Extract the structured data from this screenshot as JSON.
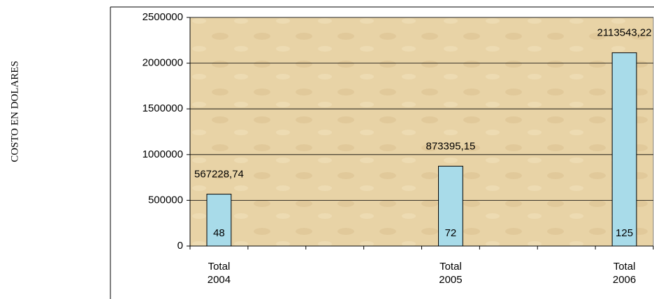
{
  "chart_data": {
    "type": "bar",
    "ylabel": "COSTO EN DOLARES",
    "categories": [
      "Total 2004",
      null,
      null,
      null,
      "Total 2005",
      null,
      null,
      "Total 2006"
    ],
    "values": [
      567228.74,
      null,
      null,
      null,
      873395.15,
      null,
      null,
      2113543.22
    ],
    "value_labels": [
      "567228,74",
      null,
      null,
      null,
      "873395,15",
      null,
      null,
      "2113543,22"
    ],
    "counts": [
      48,
      null,
      null,
      null,
      72,
      null,
      null,
      125
    ],
    "color": "#a8dbe9",
    "ylim": [
      0,
      2500000
    ],
    "yticks": [
      0,
      500000,
      1000000,
      1500000,
      2000000,
      2500000
    ],
    "grid": true
  }
}
